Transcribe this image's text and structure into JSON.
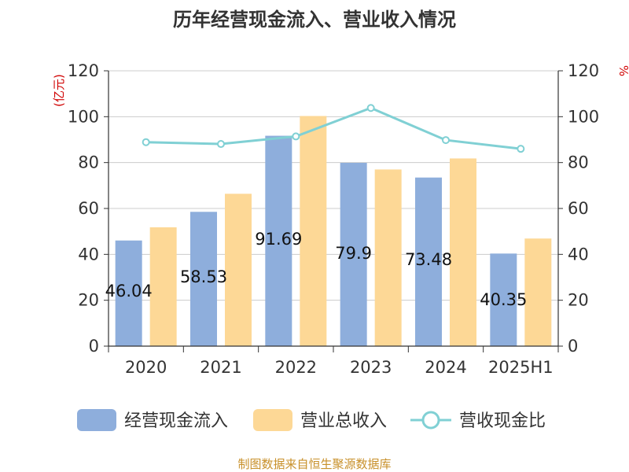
{
  "chart_data": {
    "type": "bar",
    "title": "历年经营现金流入、营业收入情况",
    "categories": [
      "2020",
      "2021",
      "2022",
      "2023",
      "2024",
      "2025H1"
    ],
    "left_axis": {
      "unit": "(亿元)",
      "ylim": [
        0,
        120
      ],
      "ticks": [
        "0",
        "20",
        "40",
        "60",
        "80",
        "100",
        "120"
      ]
    },
    "right_axis": {
      "unit": "%",
      "ylim": [
        0,
        120
      ],
      "ticks": [
        "0",
        "20",
        "40",
        "60",
        "80",
        "100",
        "120"
      ]
    },
    "series": [
      {
        "name": "经营现金流入",
        "kind": "bar",
        "axis": "left",
        "color": "#8eaedc",
        "values": [
          46.04,
          58.53,
          91.69,
          79.9,
          73.48,
          40.35
        ],
        "labels": [
          "46.04",
          "58.53",
          "91.69",
          "79.9",
          "73.48",
          "40.35"
        ]
      },
      {
        "name": "营业总收入",
        "kind": "bar",
        "axis": "left",
        "color": "#fdd896",
        "values": [
          51.8,
          66.4,
          100.3,
          77.0,
          81.8,
          46.9
        ]
      },
      {
        "name": "营收现金比",
        "kind": "line",
        "axis": "right",
        "color": "#80d0d4",
        "values": [
          88.9,
          88.1,
          91.4,
          103.8,
          89.8,
          86.0
        ]
      }
    ],
    "grid": true,
    "legend_position": "bottom"
  },
  "source": "制图数据来自恒生聚源数据库"
}
